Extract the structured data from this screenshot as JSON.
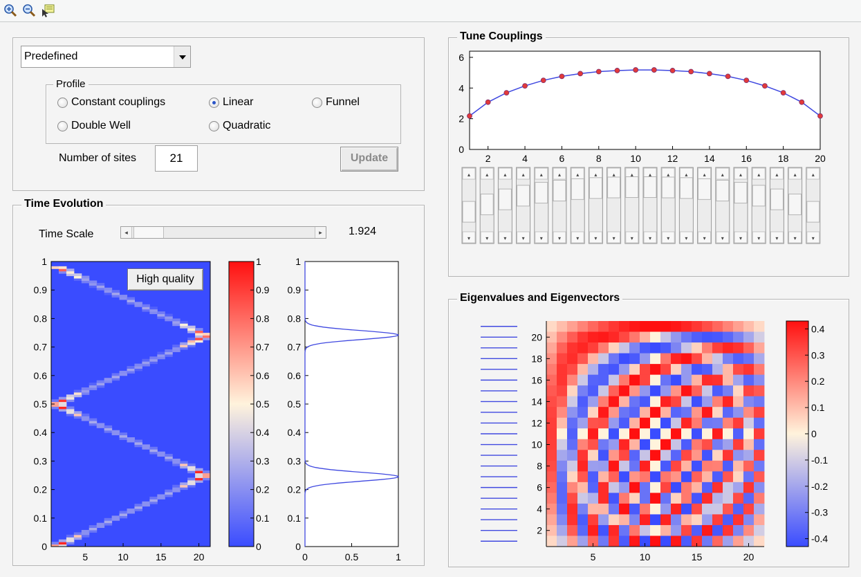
{
  "toolbar": {
    "icons": [
      "zoom-in-icon",
      "zoom-out-icon",
      "data-cursor-icon"
    ]
  },
  "settings": {
    "preset_value": "Predefined",
    "profile_title": "Profile",
    "radios": [
      {
        "label": "Constant couplings",
        "selected": false
      },
      {
        "label": "Linear",
        "selected": true
      },
      {
        "label": "Funnel",
        "selected": false
      },
      {
        "label": "Double Well",
        "selected": false
      },
      {
        "label": "Quadratic",
        "selected": false
      }
    ],
    "sites_label": "Number of sites",
    "sites_value": "21",
    "update_label": "Update"
  },
  "time_evolution": {
    "title": "Time Evolution",
    "time_scale_label": "Time Scale",
    "time_scale_value": "1.924",
    "high_quality_label": "High quality"
  },
  "tune_couplings": {
    "title": "Tune Couplings"
  },
  "eigen": {
    "title": "Eigenvalues and Eigenvectors"
  },
  "colors": {
    "accent_blue": "#2b55c8",
    "heat_blue": "#3a4cff",
    "heat_red": "#ff1010",
    "line_blue": "#3f48e0",
    "marker_red": "#e23a3a"
  },
  "chart_data": [
    {
      "type": "heatmap",
      "name": "time-evolution",
      "x_ticks": [
        5,
        10,
        15,
        20
      ],
      "y_ticks": [
        0,
        0.1,
        0.2,
        0.3,
        0.4,
        0.5,
        0.6,
        0.7,
        0.8,
        0.9,
        1
      ],
      "xlim": [
        0.5,
        21.5
      ],
      "ylim": [
        0,
        1
      ],
      "colorbar_ticks": [
        0,
        0.1,
        0.2,
        0.3,
        0.4,
        0.5,
        0.6,
        0.7,
        0.8,
        0.9,
        1
      ],
      "colorbar_range": [
        0,
        1
      ],
      "peaks": [
        {
          "t": 0.0,
          "site": 1
        },
        {
          "t": 0.25,
          "site": 21
        },
        {
          "t": 0.5,
          "site": 1
        },
        {
          "t": 0.74,
          "site": 21
        },
        {
          "t": 0.985,
          "site": 1
        }
      ]
    },
    {
      "type": "line",
      "name": "site-probability",
      "x_ticks": [
        0,
        0.5,
        1
      ],
      "y_ticks": [
        0,
        0.1,
        0.2,
        0.3,
        0.4,
        0.5,
        0.6,
        0.7,
        0.8,
        0.9,
        1
      ],
      "xlim": [
        0,
        1
      ],
      "ylim": [
        0,
        1
      ],
      "peaks": [
        {
          "center": 0.245,
          "height": 1.0,
          "width": 0.022
        },
        {
          "center": 0.742,
          "height": 1.0,
          "width": 0.022
        }
      ]
    },
    {
      "type": "line",
      "name": "couplings",
      "x": [
        1,
        2,
        3,
        4,
        5,
        6,
        7,
        8,
        9,
        10,
        11,
        12,
        13,
        14,
        15,
        16,
        17,
        18,
        19,
        20
      ],
      "values": [
        2.18,
        3.08,
        3.69,
        4.14,
        4.5,
        4.76,
        4.94,
        5.07,
        5.14,
        5.18,
        5.18,
        5.14,
        5.07,
        4.94,
        4.76,
        4.5,
        4.14,
        3.69,
        3.08,
        2.18
      ],
      "x_ticks": [
        2,
        4,
        6,
        8,
        10,
        12,
        14,
        16,
        18,
        20
      ],
      "y_ticks": [
        0,
        2,
        4,
        6
      ],
      "xlim": [
        1,
        20
      ],
      "ylim": [
        0,
        6.4
      ]
    },
    {
      "type": "heatmap",
      "name": "eigenvectors",
      "size": 21,
      "x_ticks": [
        5,
        10,
        15,
        20
      ],
      "y_ticks": [
        2,
        4,
        6,
        8,
        10,
        12,
        14,
        16,
        18,
        20
      ],
      "colorbar_ticks": [
        -0.4,
        -0.3,
        -0.2,
        -0.1,
        0,
        0.1,
        0.2,
        0.3,
        0.4
      ],
      "colorbar_labels": [
        "-0.4",
        "-0.3",
        "-0.2",
        "-0.1",
        "0",
        "0.1",
        "0.2",
        "0.3",
        "0.4"
      ],
      "colorbar_range": [
        -0.43,
        0.43
      ]
    }
  ]
}
